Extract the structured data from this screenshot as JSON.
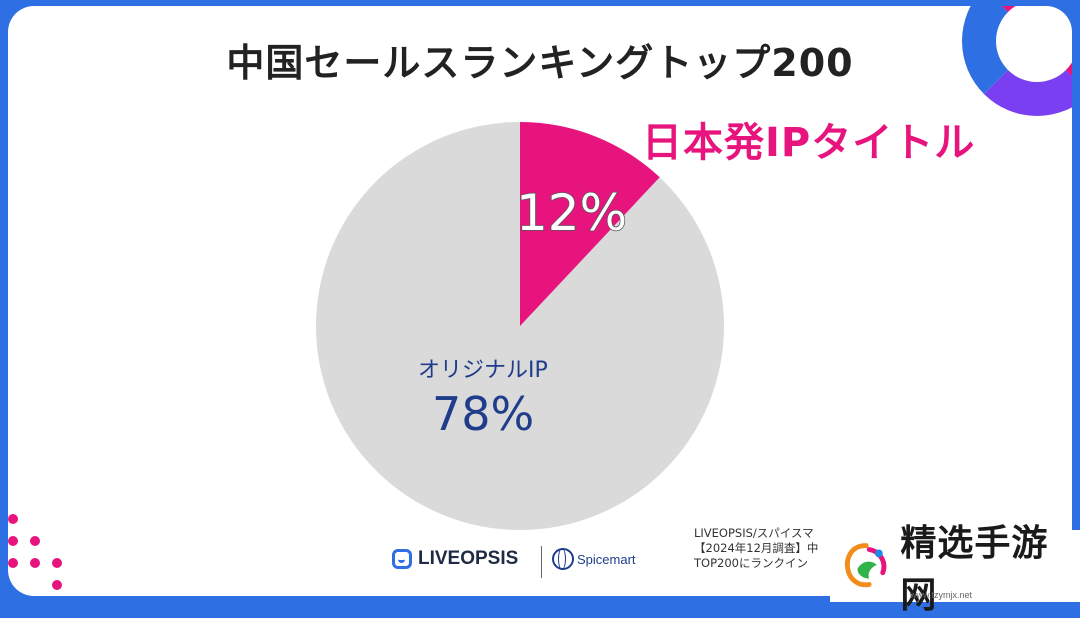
{
  "title": "中国セールスランキングトップ200",
  "highlight_label": "日本発IPタイトル",
  "colors": {
    "background": "#2f6fe4",
    "accent": "#e8147e",
    "pie_rest": "#dadada",
    "label_blue": "#1f3d8a"
  },
  "chart_data": {
    "type": "pie",
    "title": "中国セールスランキングトップ200",
    "slices": [
      {
        "label": "日本発IPタイトル",
        "value": 12,
        "display": "12%",
        "color": "#e8147e"
      },
      {
        "label": "オリジナルIP",
        "value": 78,
        "display": "78%",
        "color": "#dadada"
      }
    ]
  },
  "source_note": [
    "LIVEOPSIS/スパイスマ",
    "【2024年12月調査】中",
    "TOP200にランクイン"
  ],
  "logos": {
    "liveopsis": "LIVEOPSIS",
    "spicemart": "Spicemart"
  },
  "watermark": {
    "text": "精选手游网",
    "url": "www.tzymjx.net"
  }
}
